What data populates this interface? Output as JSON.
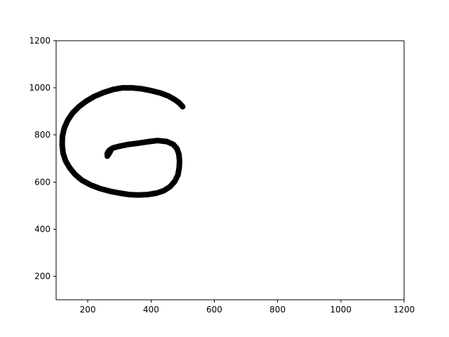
{
  "chart_data": {
    "type": "line",
    "title": "",
    "xlabel": "",
    "ylabel": "",
    "xlim": [
      100,
      1200
    ],
    "ylim": [
      100,
      1200
    ],
    "xticks": [
      200,
      400,
      600,
      800,
      1000,
      1200
    ],
    "yticks": [
      200,
      400,
      600,
      800,
      1000,
      1200
    ],
    "grid": false,
    "legend": "none",
    "series": [
      {
        "color": "#000000",
        "x": [
          500,
          490,
          475,
          455,
          430,
          400,
          370,
          340,
          310,
          280,
          250,
          220,
          195,
          172,
          152,
          137,
          126,
          120,
          119,
          122,
          130,
          143,
          160,
          182,
          210,
          240,
          270,
          300,
          330,
          360,
          390,
          418,
          440,
          460,
          475,
          485,
          489,
          490,
          488,
          482,
          470,
          450,
          420,
          390,
          360,
          330,
          300,
          280,
          268,
          262,
          262,
          268,
          275
        ],
        "y": [
          920,
          935,
          950,
          965,
          978,
          988,
          996,
          1000,
          1000,
          993,
          980,
          963,
          943,
          920,
          893,
          863,
          830,
          795,
          760,
          723,
          690,
          660,
          632,
          607,
          587,
          572,
          561,
          553,
          547,
          545,
          547,
          553,
          563,
          580,
          603,
          630,
          660,
          690,
          718,
          742,
          760,
          772,
          776,
          771,
          765,
          760,
          752,
          745,
          735,
          722,
          710,
          722,
          740
        ]
      }
    ]
  }
}
